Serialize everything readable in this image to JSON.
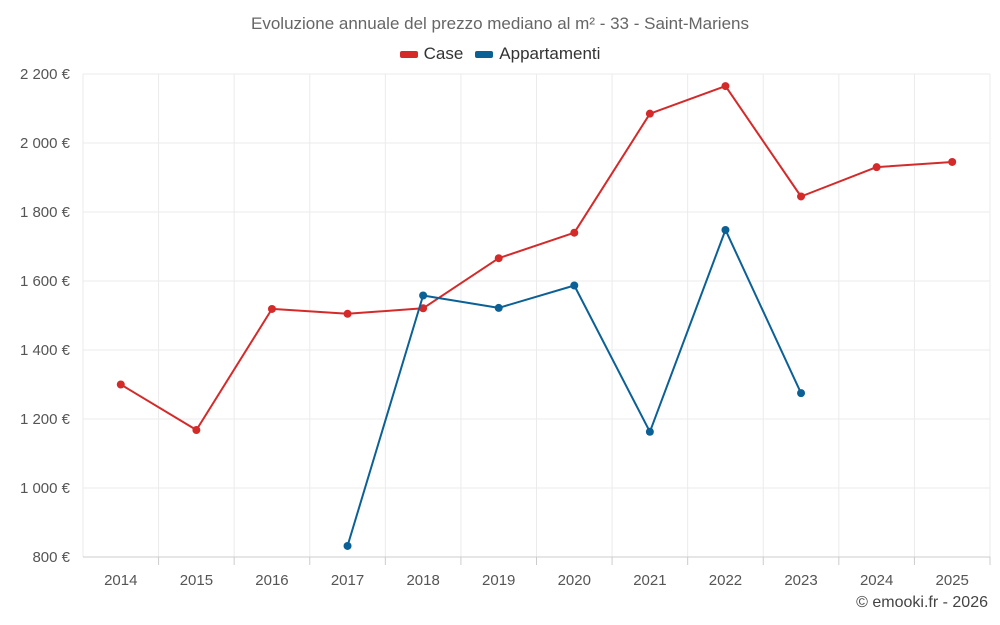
{
  "chart_data": {
    "type": "line",
    "title": "Evoluzione annuale del prezzo mediano al m² - 33 - Saint-Mariens",
    "xlabel": "",
    "ylabel": "",
    "categories": [
      "2014",
      "2015",
      "2016",
      "2017",
      "2018",
      "2019",
      "2020",
      "2021",
      "2022",
      "2023",
      "2024",
      "2025"
    ],
    "ylim": [
      800,
      2200
    ],
    "y_ticks": [
      800,
      1000,
      1200,
      1400,
      1600,
      1800,
      2000,
      2200
    ],
    "y_tick_labels": [
      "800 €",
      "1 000 €",
      "1 200 €",
      "1 400 €",
      "1 600 €",
      "1 800 €",
      "2 000 €",
      "2 200 €"
    ],
    "grid": true,
    "legend_position": "top-center",
    "series": [
      {
        "name": "Case",
        "color": "#d42a2a",
        "values": [
          1300,
          1168,
          1519,
          1505,
          1521,
          1666,
          1740,
          2085,
          2165,
          1845,
          1930,
          1945
        ]
      },
      {
        "name": "Appartamenti",
        "color": "#0b6096",
        "values": [
          null,
          null,
          null,
          832,
          1558,
          1522,
          1587,
          1163,
          1748,
          1275,
          null,
          null
        ]
      }
    ]
  },
  "footer": {
    "copyright": "© emooki.fr - 2026"
  }
}
